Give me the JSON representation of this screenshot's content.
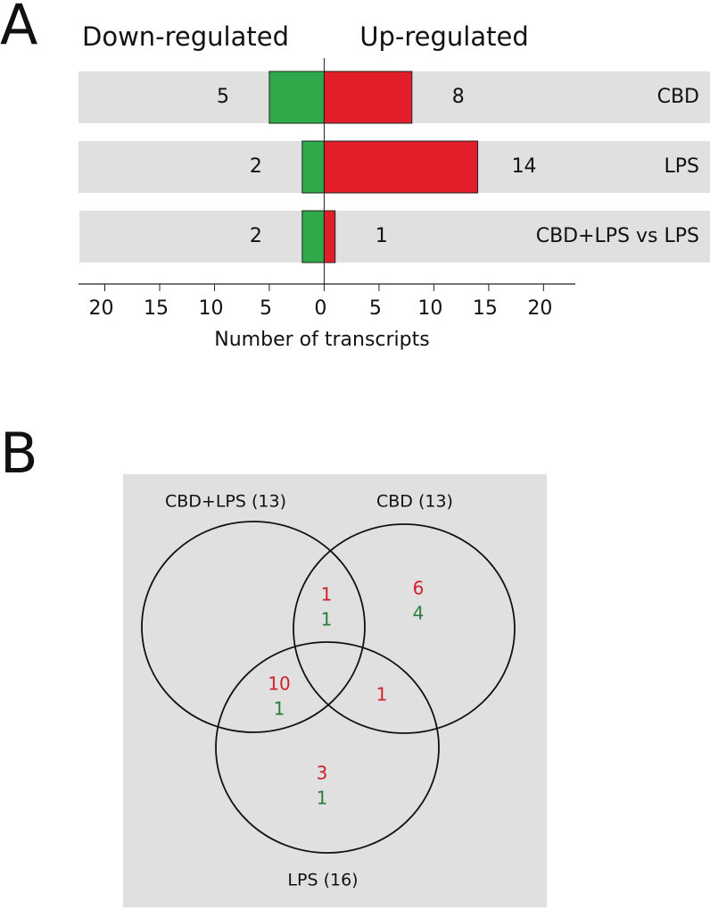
{
  "chart_data": [
    {
      "type": "bar",
      "panel_label": "A",
      "orientation": "horizontal",
      "categories": [
        "CBD",
        "LPS",
        "CBD+LPS vs LPS"
      ],
      "series": [
        {
          "name": "Down-regulated",
          "color": "#2eaa4a",
          "direction": "left",
          "values": [
            5,
            2,
            2
          ]
        },
        {
          "name": "Up-regulated",
          "color": "#e31e2b",
          "direction": "right",
          "values": [
            8,
            14,
            1
          ]
        }
      ],
      "x_label": "Number of transcripts",
      "xlim": [
        -22.4,
        22.9
      ],
      "xticks": [
        {
          "value": -20,
          "label": "20"
        },
        {
          "value": -15,
          "label": "15"
        },
        {
          "value": -10,
          "label": "10"
        },
        {
          "value": -5,
          "label": "5"
        },
        0,
        5,
        10,
        15,
        20
      ],
      "band_color": "#e0e0e0"
    },
    {
      "type": "venn",
      "panel_label": "B",
      "sets": [
        "CBD+LPS (13)",
        "CBD (13)",
        "LPS (16)"
      ],
      "up_color": "#d0202e",
      "down_color": "#2a7d3a",
      "regions": [
        {
          "up": 1,
          "down": 1
        },
        {
          "up": 6,
          "down": 4
        },
        {
          "up": 10,
          "down": 1
        },
        {
          "up": 1,
          "down": null
        },
        {
          "up": 3,
          "down": 1
        }
      ],
      "background": "#e0e0e0"
    }
  ]
}
